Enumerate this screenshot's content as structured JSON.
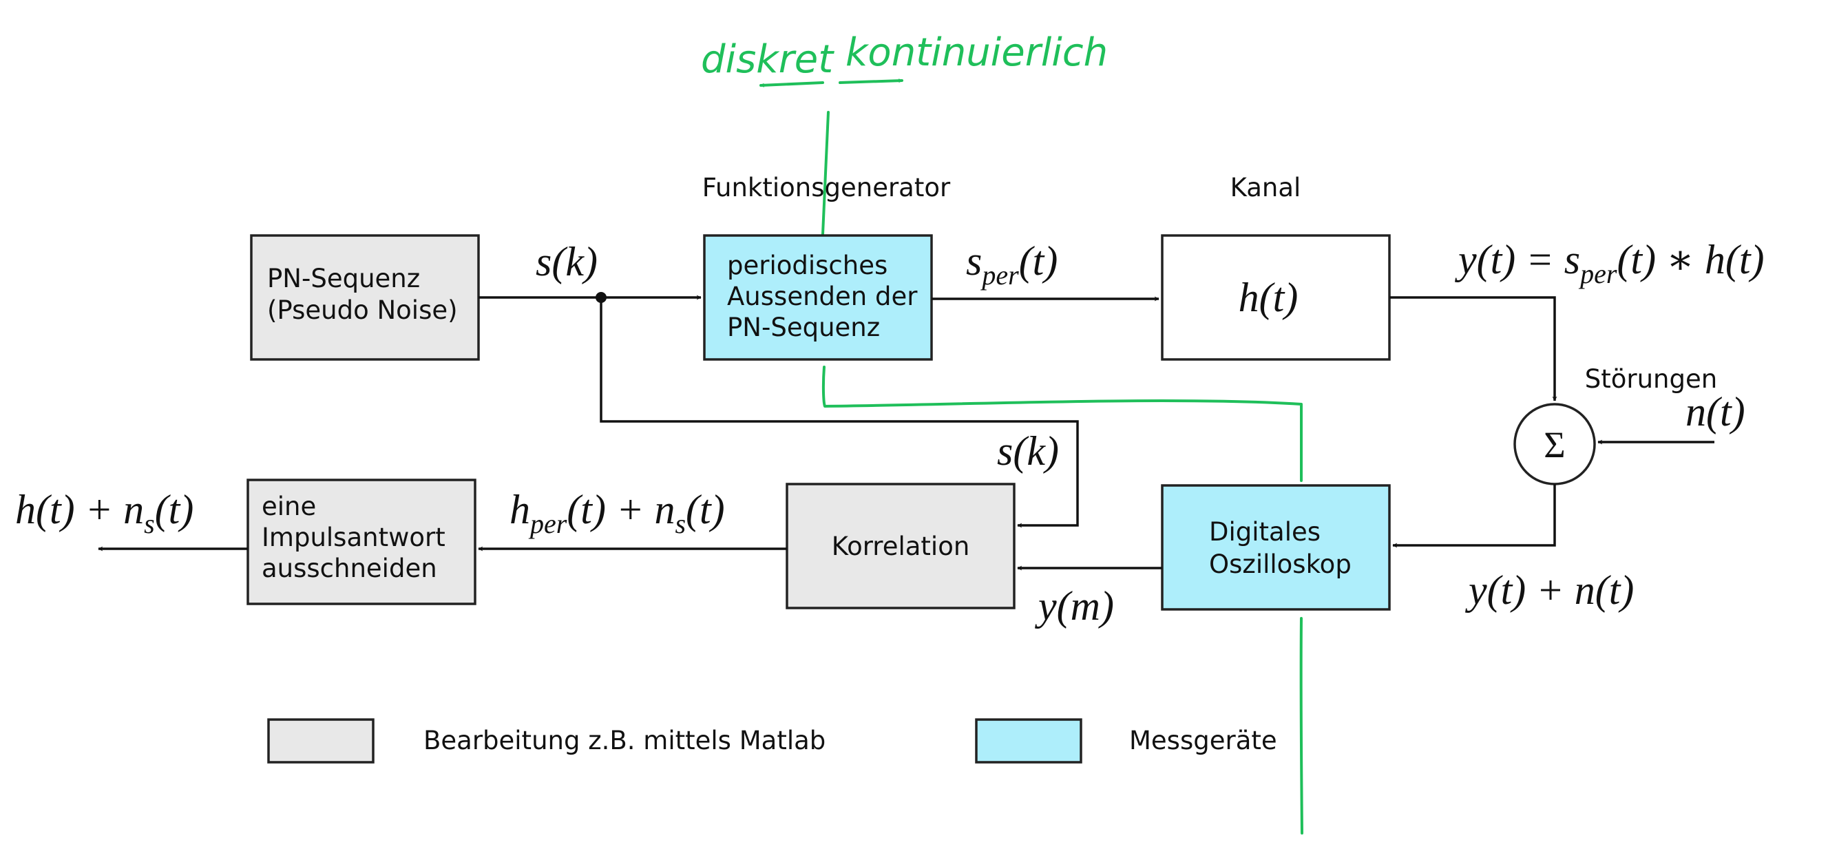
{
  "colors": {
    "matlab_box": "#e8e8e8",
    "measure_box": "#aeeefb",
    "annotation_green": "#1fbf5a",
    "line": "#111111"
  },
  "headings": {
    "funktionsgenerator": "Funktionsgenerator",
    "kanal": "Kanal",
    "stoerungen": "Störungen"
  },
  "blocks": {
    "pn_sequenz": [
      "PN-Sequenz",
      "(Pseudo Noise)"
    ],
    "periodisch": [
      "periodisches",
      "Aussenden der",
      "PN-Sequenz"
    ],
    "kanal_math": "h(t)",
    "sum_symbol": "Σ",
    "korrelation": [
      "Korrelation"
    ],
    "oszilloskop": [
      "Digitales",
      "Oszilloskop"
    ],
    "impuls": [
      "eine",
      "Impulsantwort",
      "ausschneiden"
    ]
  },
  "signals": {
    "s_k_top": "s(k)",
    "s_per": {
      "base": "s",
      "sub": "per",
      "tail": "(t)"
    },
    "y_out": {
      "pre": "y(t) = s",
      "sub": "per",
      "tail": "(t) ∗ h(t)"
    },
    "n_t": "n(t)",
    "y_plus_n": "y(t) + n(t)",
    "s_k_feedback": "s(k)",
    "y_m": "y(m)",
    "h_per_ns": {
      "base": "h",
      "sub1": "per",
      "mid": "(t) + n",
      "sub2": "s",
      "tail": "(t)"
    },
    "h_ns": {
      "pre": "h(t) + n",
      "sub": "s",
      "tail": "(t)"
    }
  },
  "legend": {
    "matlab_label": "Bearbeitung z.B. mittels Matlab",
    "measure_label": "Messgeräte"
  },
  "annotations": {
    "diskret": "diskret",
    "kontinuierlich": "kontinuierlich"
  }
}
